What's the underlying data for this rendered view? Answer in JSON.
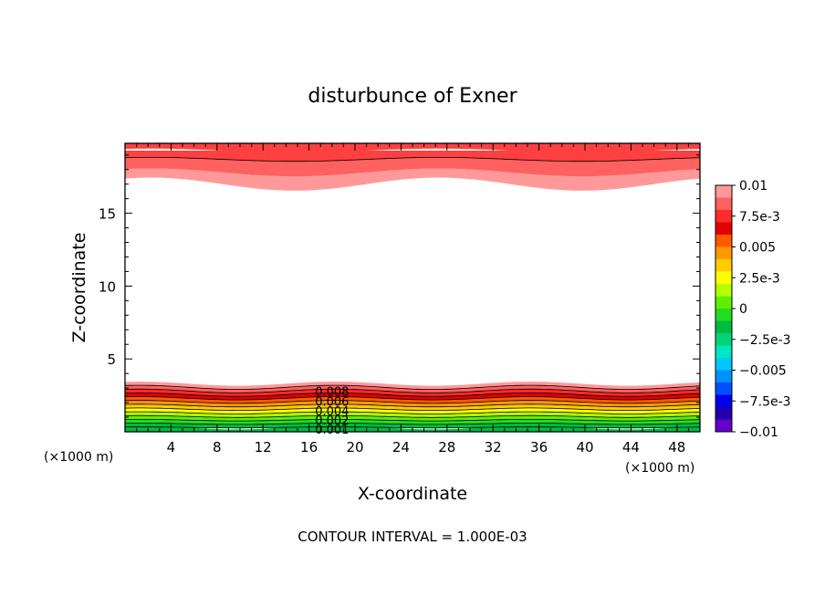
{
  "chart_data": {
    "type": "contour",
    "title": "disturbunce of Exner",
    "xlabel": "X-coordinate",
    "ylabel": "Z-coordinate",
    "x_unit_left": "(×1000 m)",
    "x_unit_right": "(×1000 m)",
    "footer": "CONTOUR INTERVAL = 1.000E-03",
    "xlim": [
      0,
      50
    ],
    "ylim": [
      0,
      19.8
    ],
    "xticks": [
      4,
      8,
      12,
      16,
      20,
      24,
      28,
      32,
      36,
      40,
      44,
      48
    ],
    "xtick_labels": [
      "4",
      "8",
      "12",
      "16",
      "20",
      "24",
      "28",
      "32",
      "36",
      "40",
      "44",
      "48"
    ],
    "yticks": [
      5,
      10,
      15
    ],
    "ytick_labels": [
      "5",
      "10",
      "15"
    ],
    "contour_interval": 0.001,
    "contour_labels": [
      {
        "text": "0.008",
        "x": 18.0,
        "z": 2.8
      },
      {
        "text": "0.006",
        "x": 18.0,
        "z": 2.1
      },
      {
        "text": "0.004",
        "x": 18.0,
        "z": 1.45
      },
      {
        "text": "0.002",
        "x": 18.0,
        "z": 0.8
      },
      {
        "text": "0.001",
        "x": 18.0,
        "z": 0.2
      }
    ],
    "colorbar": {
      "labels": [
        "0.01",
        "7.5e-3",
        "0.005",
        "2.5e-3",
        "0",
        "−2.5e-3",
        "−0.005",
        "−7.5e-3",
        "−0.01"
      ],
      "colors": [
        "#ff9999",
        "#ff6060",
        "#ff2a2a",
        "#e20000",
        "#ff5a00",
        "#ff9900",
        "#ffcc00",
        "#ffff00",
        "#b4ff00",
        "#5ff000",
        "#22dd22",
        "#00bb40",
        "#00d47a",
        "#00e8c0",
        "#00c8ff",
        "#0090ff",
        "#0050ff",
        "#0000ee",
        "#2200aa",
        "#6600cc"
      ]
    },
    "bottom_layer_boundaries_z": [
      0.3,
      0.55,
      0.8,
      1.05,
      1.3,
      1.55,
      1.8,
      2.05,
      2.3,
      2.55,
      2.8,
      3.05,
      3.3
    ],
    "bottom_layer_colors": [
      "#00bb40",
      "#22dd22",
      "#5ff000",
      "#b4ff00",
      "#ffff00",
      "#ffcc00",
      "#ff9900",
      "#ff5a00",
      "#e20000",
      "#ff2a2a",
      "#ff6060",
      "#ff9999"
    ],
    "top_layer_boundaries_z": [
      17.0,
      17.8,
      18.7,
      19.3
    ],
    "top_layer_colors": [
      "#ff9999",
      "#ff6060",
      "#ff4040"
    ]
  }
}
